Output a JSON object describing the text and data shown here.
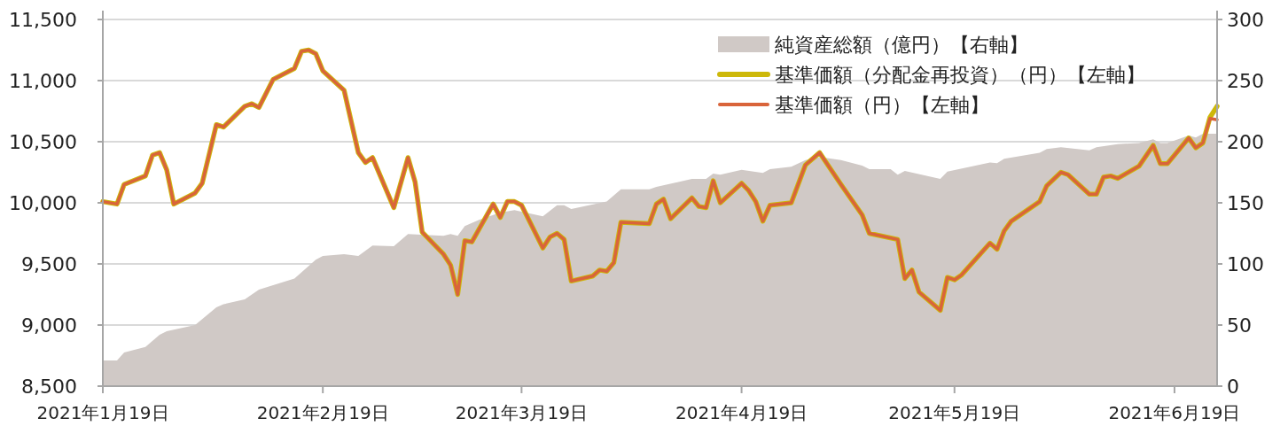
{
  "chart_data": {
    "type": "line",
    "xlim": [
      "2021-01-19",
      "2021-06-25"
    ],
    "xticks": [
      {
        "value": "2021-01-19",
        "label": "2021年1月19日"
      },
      {
        "value": "2021-02-19",
        "label": "2021年2月19日"
      },
      {
        "value": "2021-03-19",
        "label": "2021年3月19日"
      },
      {
        "value": "2021-04-19",
        "label": "2021年4月19日"
      },
      {
        "value": "2021-05-19",
        "label": "2021年5月19日"
      },
      {
        "value": "2021-06-19",
        "label": "2021年6月19日"
      }
    ],
    "ylim": [
      8500,
      11500
    ],
    "yticks": [
      {
        "value": 8500,
        "label": "8,500"
      },
      {
        "value": 9000,
        "label": "9,000"
      },
      {
        "value": 9500,
        "label": "9,500"
      },
      {
        "value": 10000,
        "label": "10,000"
      },
      {
        "value": 10500,
        "label": "10,500"
      },
      {
        "value": 11000,
        "label": "11,000"
      },
      {
        "value": 11500,
        "label": "11,500"
      }
    ],
    "y2lim": [
      0,
      300
    ],
    "y2ticks": [
      0,
      50,
      100,
      150,
      200,
      250,
      300
    ],
    "grid": "y",
    "legend": "top right",
    "series": [
      {
        "name": "純資産総額（億円）【右軸】",
        "type": "area",
        "axis": "y2",
        "color": "#d0c9c6",
        "x": [
          "2021-01-19",
          "2021-01-21",
          "2021-01-22",
          "2021-01-25",
          "2021-01-27",
          "2021-01-28",
          "2021-02-01",
          "2021-02-04",
          "2021-02-05",
          "2021-02-08",
          "2021-02-10",
          "2021-02-15",
          "2021-02-18",
          "2021-02-19",
          "2021-02-22",
          "2021-02-24",
          "2021-02-26",
          "2021-03-01",
          "2021-03-03",
          "2021-03-08",
          "2021-03-09",
          "2021-03-10",
          "2021-03-11",
          "2021-03-13",
          "2021-03-16",
          "2021-03-18",
          "2021-03-22",
          "2021-03-24",
          "2021-03-25",
          "2021-03-26",
          "2021-03-31",
          "2021-04-02",
          "2021-04-06",
          "2021-04-07",
          "2021-04-12",
          "2021-04-14",
          "2021-04-15",
          "2021-04-16",
          "2021-04-19",
          "2021-04-22",
          "2021-04-23",
          "2021-04-26",
          "2021-04-28",
          "2021-04-30",
          "2021-05-03",
          "2021-05-06",
          "2021-05-07",
          "2021-05-10",
          "2021-05-11",
          "2021-05-12",
          "2021-05-17",
          "2021-05-18",
          "2021-05-24",
          "2021-05-25",
          "2021-05-26",
          "2021-05-31",
          "2021-06-01",
          "2021-06-03",
          "2021-06-07",
          "2021-06-08",
          "2021-06-11",
          "2021-06-14",
          "2021-06-16",
          "2021-06-17",
          "2021-06-18",
          "2021-06-21",
          "2021-06-22",
          "2021-06-23",
          "2021-06-25"
        ],
        "values": [
          21,
          21,
          27.5,
          32,
          42,
          45,
          50,
          64.5,
          67,
          71,
          79,
          88,
          103.5,
          106.5,
          108,
          106.5,
          115,
          114.5,
          124.5,
          123,
          124.5,
          123,
          131,
          136,
          142,
          144,
          139,
          148,
          148,
          145,
          151,
          161,
          161,
          163,
          169.5,
          169.5,
          174,
          173,
          177,
          174.5,
          177.5,
          179.5,
          185,
          187.5,
          185,
          180.5,
          177.5,
          177.5,
          173,
          176,
          169.5,
          175.5,
          183,
          182.5,
          186,
          191,
          194,
          195.5,
          193,
          195.5,
          198,
          199,
          202,
          199,
          199,
          205,
          203.5,
          206.5,
          206.5
        ]
      },
      {
        "name": "基準価額（分配金再投資）（円）【左軸】",
        "color": "#cdb80a",
        "x": [
          "2021-01-19",
          "2021-01-21",
          "2021-01-22",
          "2021-01-25",
          "2021-01-26",
          "2021-01-27",
          "2021-01-28",
          "2021-01-29",
          "2021-02-01",
          "2021-02-02",
          "2021-02-04",
          "2021-02-05",
          "2021-02-08",
          "2021-02-09",
          "2021-02-10",
          "2021-02-12",
          "2021-02-15",
          "2021-02-16",
          "2021-02-17",
          "2021-02-18",
          "2021-02-19",
          "2021-02-22",
          "2021-02-24",
          "2021-02-25",
          "2021-02-26",
          "2021-03-01",
          "2021-03-03",
          "2021-03-04",
          "2021-03-05",
          "2021-03-08",
          "2021-03-09",
          "2021-03-10",
          "2021-03-11",
          "2021-03-12",
          "2021-03-15",
          "2021-03-16",
          "2021-03-17",
          "2021-03-18",
          "2021-03-19",
          "2021-03-22",
          "2021-03-23",
          "2021-03-24",
          "2021-03-25",
          "2021-03-26",
          "2021-03-29",
          "2021-03-30",
          "2021-03-31",
          "2021-04-01",
          "2021-04-02",
          "2021-04-06",
          "2021-04-07",
          "2021-04-08",
          "2021-04-09",
          "2021-04-12",
          "2021-04-13",
          "2021-04-14",
          "2021-04-15",
          "2021-04-16",
          "2021-04-19",
          "2021-04-20",
          "2021-04-21",
          "2021-04-22",
          "2021-04-23",
          "2021-04-26",
          "2021-04-28",
          "2021-04-30",
          "2021-05-03",
          "2021-05-06",
          "2021-05-07",
          "2021-05-11",
          "2021-05-12",
          "2021-05-13",
          "2021-05-14",
          "2021-05-17",
          "2021-05-18",
          "2021-05-19",
          "2021-05-20",
          "2021-05-24",
          "2021-05-25",
          "2021-05-26",
          "2021-05-27",
          "2021-05-31",
          "2021-06-01",
          "2021-06-03",
          "2021-06-04",
          "2021-06-07",
          "2021-06-08",
          "2021-06-09",
          "2021-06-10",
          "2021-06-11",
          "2021-06-14",
          "2021-06-16",
          "2021-06-17",
          "2021-06-18",
          "2021-06-21",
          "2021-06-22",
          "2021-06-23",
          "2021-06-24",
          "2021-06-25"
        ],
        "values": [
          10010,
          9990,
          10150,
          10220,
          10390,
          10410,
          10270,
          9990,
          10080,
          10160,
          10640,
          10620,
          10790,
          10810,
          10780,
          11010,
          11100,
          11240,
          11250,
          11220,
          11080,
          10920,
          10410,
          10330,
          10370,
          9960,
          10370,
          10170,
          9760,
          9580,
          9490,
          9250,
          9690,
          9680,
          9990,
          9880,
          10010,
          10010,
          9980,
          9630,
          9720,
          9750,
          9700,
          9360,
          9400,
          9450,
          9440,
          9510,
          9840,
          9830,
          9990,
          10030,
          9870,
          10040,
          9970,
          9960,
          10180,
          10000,
          10160,
          10100,
          10010,
          9850,
          9980,
          10000,
          10310,
          10410,
          10150,
          9900,
          9750,
          9700,
          9380,
          9450,
          9270,
          9120,
          9390,
          9370,
          9410,
          9670,
          9620,
          9770,
          9850,
          10010,
          10140,
          10250,
          10230,
          10070,
          10070,
          10210,
          10220,
          10200,
          10300,
          10470,
          10320,
          10320,
          10530,
          10450,
          10490,
          10700,
          10790
        ]
      },
      {
        "name": "基準価額（円）【左軸】",
        "color": "#d9643a",
        "x": [
          "2021-01-19",
          "2021-01-21",
          "2021-01-22",
          "2021-01-25",
          "2021-01-26",
          "2021-01-27",
          "2021-01-28",
          "2021-01-29",
          "2021-02-01",
          "2021-02-02",
          "2021-02-04",
          "2021-02-05",
          "2021-02-08",
          "2021-02-09",
          "2021-02-10",
          "2021-02-12",
          "2021-02-15",
          "2021-02-16",
          "2021-02-17",
          "2021-02-18",
          "2021-02-19",
          "2021-02-22",
          "2021-02-24",
          "2021-02-25",
          "2021-02-26",
          "2021-03-01",
          "2021-03-03",
          "2021-03-04",
          "2021-03-05",
          "2021-03-08",
          "2021-03-09",
          "2021-03-10",
          "2021-03-11",
          "2021-03-12",
          "2021-03-15",
          "2021-03-16",
          "2021-03-17",
          "2021-03-18",
          "2021-03-19",
          "2021-03-22",
          "2021-03-23",
          "2021-03-24",
          "2021-03-25",
          "2021-03-26",
          "2021-03-29",
          "2021-03-30",
          "2021-03-31",
          "2021-04-01",
          "2021-04-02",
          "2021-04-06",
          "2021-04-07",
          "2021-04-08",
          "2021-04-09",
          "2021-04-12",
          "2021-04-13",
          "2021-04-14",
          "2021-04-15",
          "2021-04-16",
          "2021-04-19",
          "2021-04-20",
          "2021-04-21",
          "2021-04-22",
          "2021-04-23",
          "2021-04-26",
          "2021-04-28",
          "2021-04-30",
          "2021-05-03",
          "2021-05-06",
          "2021-05-07",
          "2021-05-11",
          "2021-05-12",
          "2021-05-13",
          "2021-05-14",
          "2021-05-17",
          "2021-05-18",
          "2021-05-19",
          "2021-05-20",
          "2021-05-24",
          "2021-05-25",
          "2021-05-26",
          "2021-05-27",
          "2021-05-31",
          "2021-06-01",
          "2021-06-03",
          "2021-06-04",
          "2021-06-07",
          "2021-06-08",
          "2021-06-09",
          "2021-06-10",
          "2021-06-11",
          "2021-06-14",
          "2021-06-16",
          "2021-06-17",
          "2021-06-18",
          "2021-06-21",
          "2021-06-22",
          "2021-06-23",
          "2021-06-24",
          "2021-06-25"
        ],
        "values": [
          10010,
          9990,
          10150,
          10220,
          10390,
          10410,
          10270,
          9990,
          10080,
          10160,
          10640,
          10620,
          10790,
          10810,
          10780,
          11010,
          11100,
          11240,
          11250,
          11220,
          11080,
          10920,
          10410,
          10330,
          10370,
          9960,
          10370,
          10170,
          9760,
          9580,
          9490,
          9250,
          9690,
          9680,
          9990,
          9880,
          10010,
          10010,
          9980,
          9630,
          9720,
          9750,
          9700,
          9360,
          9400,
          9450,
          9440,
          9510,
          9840,
          9830,
          9990,
          10030,
          9870,
          10040,
          9970,
          9960,
          10180,
          10000,
          10160,
          10100,
          10010,
          9850,
          9980,
          10000,
          10310,
          10410,
          10150,
          9900,
          9750,
          9700,
          9380,
          9450,
          9270,
          9120,
          9390,
          9370,
          9410,
          9670,
          9620,
          9770,
          9850,
          10010,
          10140,
          10250,
          10230,
          10070,
          10070,
          10210,
          10220,
          10200,
          10300,
          10470,
          10320,
          10320,
          10530,
          10450,
          10490,
          10690,
          10680
        ]
      }
    ]
  }
}
